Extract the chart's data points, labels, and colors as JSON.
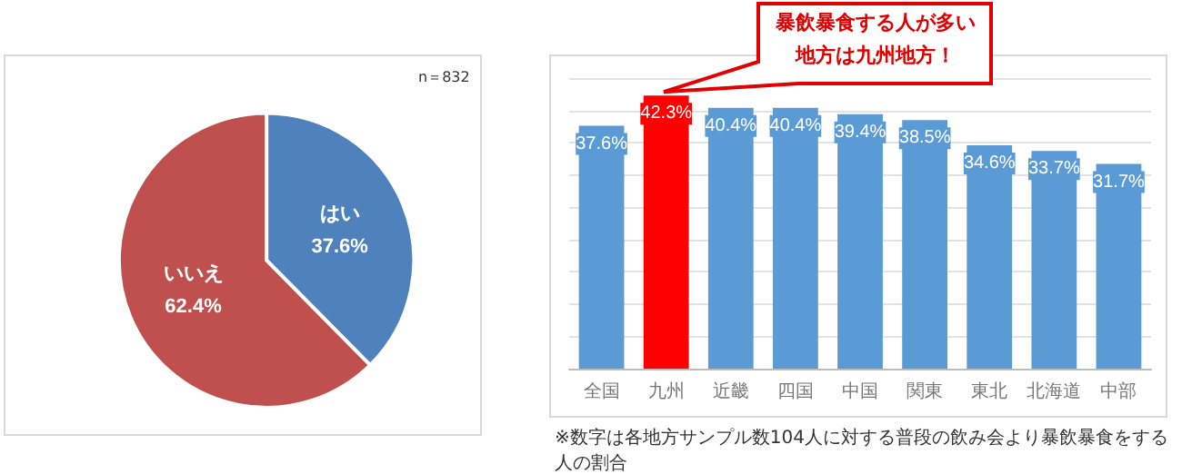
{
  "chart_data": [
    {
      "type": "pie",
      "categories": [
        "はい",
        "いいえ"
      ],
      "values": [
        37.6,
        62.4
      ],
      "colors": [
        "#4f81bd",
        "#c0504d"
      ],
      "value_labels": [
        "37.6%",
        "62.4%"
      ],
      "legend": false,
      "annotations": [
        "n＝832"
      ]
    },
    {
      "type": "bar",
      "categories": [
        "全国",
        "九州",
        "近畿",
        "四国",
        "中国",
        "関東",
        "東北",
        "北海道",
        "中部"
      ],
      "values": [
        37.6,
        42.3,
        40.4,
        40.4,
        39.4,
        38.5,
        34.6,
        33.7,
        31.7
      ],
      "colors": [
        "#5b9bd5",
        "#ff0000",
        "#5b9bd5",
        "#5b9bd5",
        "#5b9bd5",
        "#5b9bd5",
        "#5b9bd5",
        "#5b9bd5",
        "#5b9bd5"
      ],
      "value_labels": [
        "37.6%",
        "42.3%",
        "40.4%",
        "40.4%",
        "39.4%",
        "38.5%",
        "34.6%",
        "33.7%",
        "31.7%"
      ],
      "ylim": [
        0,
        45
      ],
      "yticks": [
        {
          "value": 0,
          "label": null
        },
        {
          "value": 5,
          "label": null
        },
        {
          "value": 10,
          "label": null
        },
        {
          "value": 15,
          "label": null
        },
        {
          "value": 20,
          "label": null
        },
        {
          "value": 25,
          "label": null
        },
        {
          "value": 30,
          "label": null
        },
        {
          "value": 35,
          "label": null
        },
        {
          "value": 40,
          "label": null
        },
        {
          "value": 45,
          "label": null
        }
      ],
      "grid": "y",
      "tick_labels": "x",
      "legend": false,
      "annotations": [
        "暴飲暴食する人が多い地方は九州地方！",
        "※数字は各地方サンプル数104人に対する普段の飲み会より暴飲暴食をする人の割合"
      ]
    }
  ]
}
